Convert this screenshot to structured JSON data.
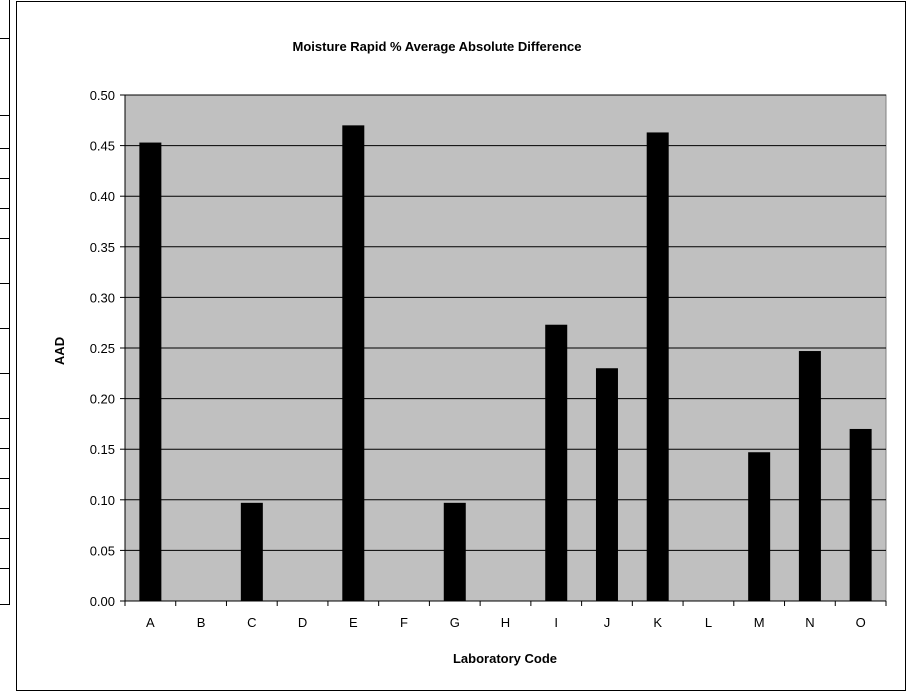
{
  "chart_data": {
    "type": "bar",
    "title": "Moisture Rapid % Average Absolute Difference",
    "xlabel": "Laboratory Code",
    "ylabel": "AAD",
    "categories": [
      "A",
      "B",
      "C",
      "D",
      "E",
      "F",
      "G",
      "H",
      "I",
      "J",
      "K",
      "L",
      "M",
      "N",
      "O"
    ],
    "values": [
      0.453,
      0,
      0.097,
      0,
      0.47,
      0,
      0.097,
      0,
      0.273,
      0.23,
      0.463,
      0,
      0.147,
      0.247,
      0.17
    ],
    "ylim": [
      0,
      0.5
    ],
    "yticks": [
      "0.00",
      "0.05",
      "0.10",
      "0.15",
      "0.20",
      "0.25",
      "0.30",
      "0.35",
      "0.40",
      "0.45",
      "0.50"
    ],
    "grid": true,
    "legend": "none",
    "colors": {
      "plot_bg": "#c0c0c0",
      "bar": "#000000",
      "grid": "#000000"
    }
  }
}
